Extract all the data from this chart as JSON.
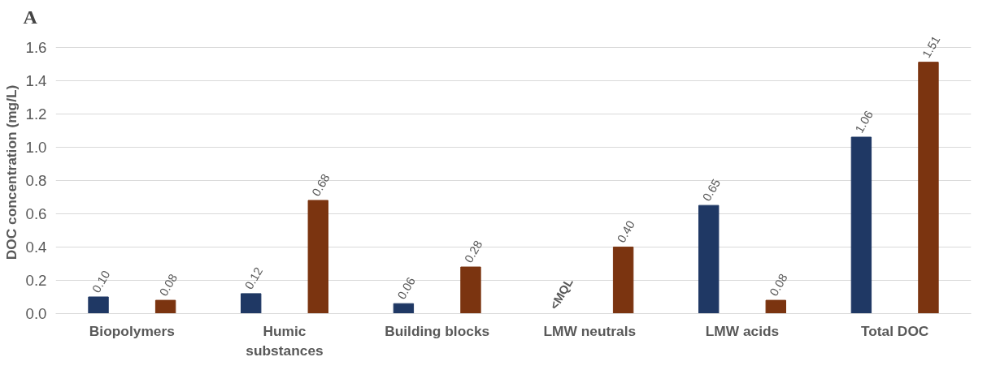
{
  "chart_data": {
    "type": "bar",
    "ylabel": "DOC concentration (mg/L)",
    "annotations": [
      "A"
    ],
    "categories": [
      "Biopolymers",
      "Humic substances",
      "Building blocks",
      "LMW neutrals",
      "LMW acids",
      "Total DOC"
    ],
    "series": [
      {
        "color": "#1f3864",
        "values": [
          0.1,
          0.12,
          0.06,
          null,
          0.65,
          1.06
        ],
        "value_labels": [
          "0.10",
          "0.12",
          "0.06",
          "<MQL",
          "0.65",
          "1.06"
        ]
      },
      {
        "color": "#7b3410",
        "values": [
          0.08,
          0.68,
          0.28,
          0.4,
          0.08,
          1.51
        ],
        "value_labels": [
          "0.08",
          "0.68",
          "0.28",
          "0.40",
          "0.08",
          "1.51"
        ]
      }
    ],
    "ylim": [
      0,
      1.6
    ],
    "yticks": [
      {
        "value": 0,
        "label": "0.0"
      },
      {
        "value": 0.2,
        "label": "0.2"
      },
      {
        "value": 0.4,
        "label": "0.4"
      },
      {
        "value": 0.6,
        "label": "0.6"
      },
      {
        "value": 0.8,
        "label": "0.8"
      },
      {
        "value": 1.0,
        "label": "1.0"
      },
      {
        "value": 1.2,
        "label": "1.2"
      },
      {
        "value": 1.4,
        "label": "1.4"
      },
      {
        "value": 1.6,
        "label": "1.6"
      }
    ],
    "grid": "y"
  }
}
